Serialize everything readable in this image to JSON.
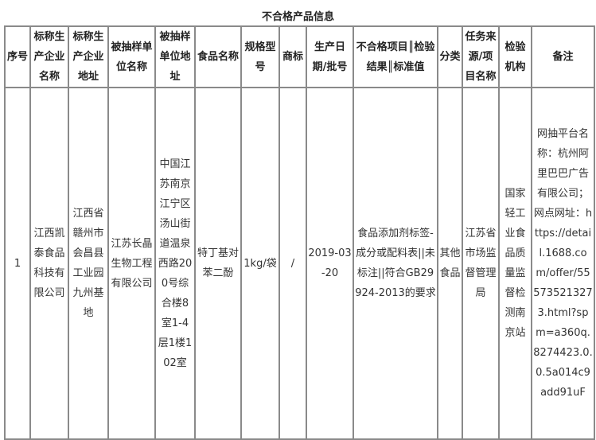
{
  "title": "不合格产品信息",
  "columns": [
    "序号",
    "标称生产企业名称",
    "标称生产企业地址",
    "被抽样单位名称",
    "被抽样单位地址",
    "食品名称",
    "规格型号",
    "商标",
    "生产日期/批号",
    "不合格项目║检验结果║标准值",
    "分类",
    "任务来源/项目名称",
    "检验机构",
    "备注"
  ],
  "rows": [
    [
      "1",
      "江西凯泰食品科技有限公司",
      "江西省赣州市会昌县工业园九州基地",
      "江苏长晶生物工程有限公司",
      "中国江苏南京江宁区汤山街道温泉西路200号综合楼8室1-4层1楼102室",
      "特丁基对苯二酚",
      "1kg/袋",
      "/",
      "2019-03-20",
      "食品添加剂标签-成分或配料表||未标注||符合GB29924-2013的要求",
      "其他食品",
      "江苏省市场监督管理局",
      "国家轻工业食品质量监督检测南京站",
      "网抽平台名称：杭州阿里巴巴广告有限公司；网点网址：https://detail.1688.com/offer/555735213273.html?spm=a360q.8274423.0.0.5a014c9add91uF"
    ]
  ]
}
